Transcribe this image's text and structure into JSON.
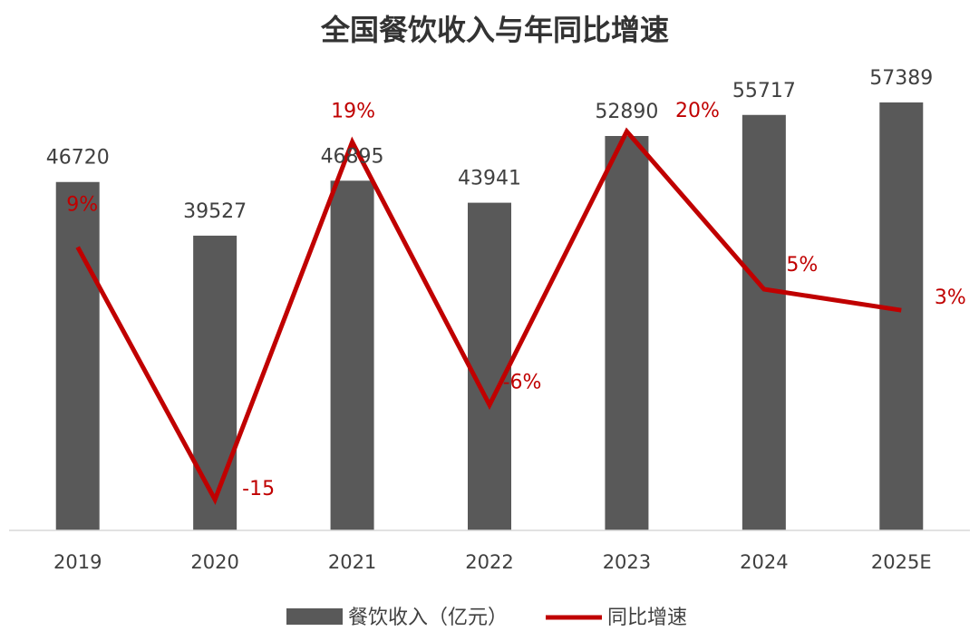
{
  "chart_data": {
    "type": "bar",
    "title": "全国餐饮收入与年同比增速",
    "categories": [
      "2019",
      "2020",
      "2021",
      "2022",
      "2023",
      "2024",
      "2025E"
    ],
    "series": [
      {
        "name": "餐饮收入（亿元）",
        "type": "bar",
        "color": "#595959",
        "values": [
          46720,
          39527,
          46895,
          43941,
          52890,
          55717,
          57389
        ],
        "labels": [
          "46720",
          "39527",
          "46895",
          "43941",
          "52890",
          "55717",
          "57389"
        ]
      },
      {
        "name": "同比增速",
        "type": "line",
        "color": "#c00000",
        "values": [
          9,
          -15,
          19,
          -6,
          20,
          5,
          3
        ],
        "labels": [
          "9%",
          "-15",
          "19%",
          "-6%",
          "20%",
          "5%",
          "3%"
        ]
      }
    ],
    "bar_axis_range": [
      0,
      60000
    ],
    "line_axis_range": [
      -15,
      20
    ],
    "grid": false,
    "legend_position": "bottom"
  }
}
